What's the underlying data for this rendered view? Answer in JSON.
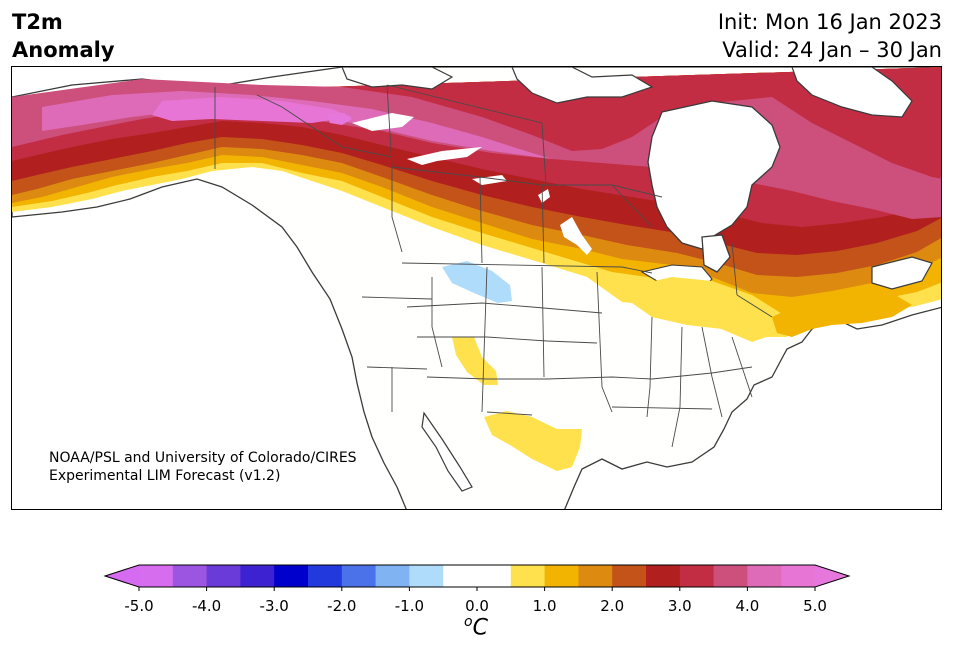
{
  "header": {
    "variable": "T2m",
    "quantity": "Anomaly",
    "init": "Init: Mon 16 Jan 2023",
    "valid": "Valid: 24 Jan – 30 Jan"
  },
  "credit": {
    "line1": "NOAA/PSL and University of Colorado/CIRES",
    "line2": "Experimental LIM Forecast (v1.2)"
  },
  "colorbar": {
    "unit_degree": "o",
    "unit_letter": "C",
    "ticks": [
      "-5.0",
      "-4.0",
      "-3.0",
      "-2.0",
      "-1.0",
      "0.0",
      "1.0",
      "2.0",
      "3.0",
      "4.0",
      "5.0"
    ],
    "levels": [
      -5.0,
      -4.5,
      -4.0,
      -3.5,
      -3.0,
      -2.5,
      -2.0,
      -1.5,
      -1.0,
      -0.5,
      0.5,
      1.0,
      1.5,
      2.0,
      2.5,
      3.0,
      3.5,
      4.0,
      4.5,
      5.0
    ],
    "colors": [
      "#d66cee",
      "#9b55e0",
      "#6b3bd9",
      "#3c22d0",
      "#0000cc",
      "#2239dd",
      "#4b72e8",
      "#7fb3f2",
      "#aedcfa",
      "#ffffff",
      "#ffe14d",
      "#f2b400",
      "#dd8a10",
      "#c35318",
      "#b1201f",
      "#c32d44",
      "#cc4f7c",
      "#de6bb7",
      "#e675d5"
    ],
    "extend_low": "#d56bf0",
    "extend_high": "#e678dd"
  },
  "map_layers": {
    "land_color": "#fffffd",
    "water_color": "#ffffff",
    "coast_color": "#3a3a3a",
    "anomaly_regions": [
      "Warm anomaly (+3 to +5 °C) across Alaska, northern Canada and Quebec/Labrador",
      "Warm anomaly (+1 to +3 °C) over the Great Lakes, New England and the Maritimes",
      "Weak warm anomaly (+0.5 to +1 °C) over the southern Rockies and Texas",
      "Weak cold anomaly (-0.5 to -1 °C) over Montana"
    ]
  }
}
